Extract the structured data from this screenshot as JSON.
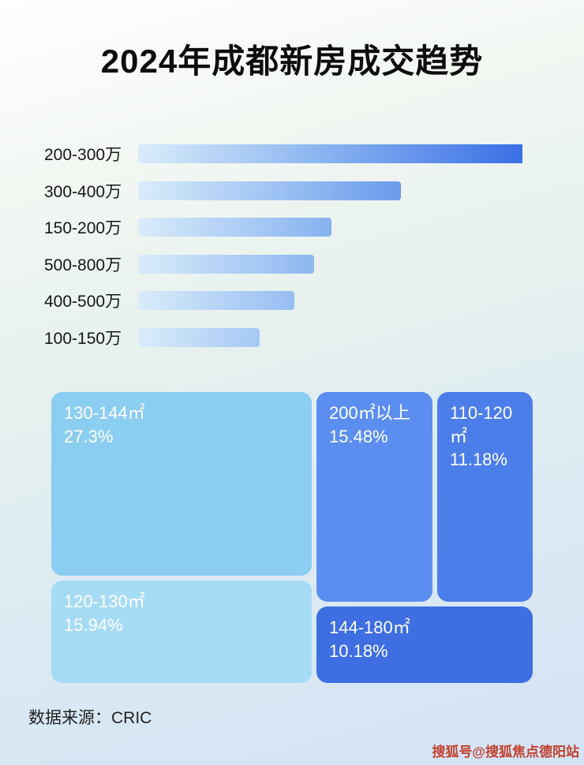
{
  "title": "2024年成都新房成交趋势",
  "chart_data": [
    {
      "type": "bar",
      "orientation": "horizontal",
      "categories": [
        "200-300万",
        "300-400万",
        "150-200万",
        "500-800万",
        "400-500万",
        "100-150万"
      ],
      "values": [
        100,
        68,
        50,
        45.5,
        40.5,
        31.5
      ],
      "value_note": "relative bar lengths as % of longest bar; no numeric labels shown in image",
      "bar_gradient": [
        "#d9ecfb",
        "#3a6fe6"
      ],
      "grid": false,
      "legend": false
    },
    {
      "type": "treemap",
      "items": [
        {
          "label": "130-144㎡",
          "value": 27.3,
          "display": "27.3%",
          "color": "#8ccdf2"
        },
        {
          "label": "120-130㎡",
          "value": 15.94,
          "display": "15.94%",
          "color": "#a6dbf6"
        },
        {
          "label": "200㎡以上",
          "value": 15.48,
          "display": "15.48%",
          "color": "#5b8ef0"
        },
        {
          "label": "110-120㎡",
          "value": 11.18,
          "display": "11.18%",
          "color": "#4c7eea"
        },
        {
          "label": "144-180㎡",
          "value": 10.18,
          "display": "10.18%",
          "color": "#3e6ee2"
        }
      ]
    }
  ],
  "source": "数据来源：CRIC",
  "watermark": "搜狐号@搜狐焦点德阳站"
}
